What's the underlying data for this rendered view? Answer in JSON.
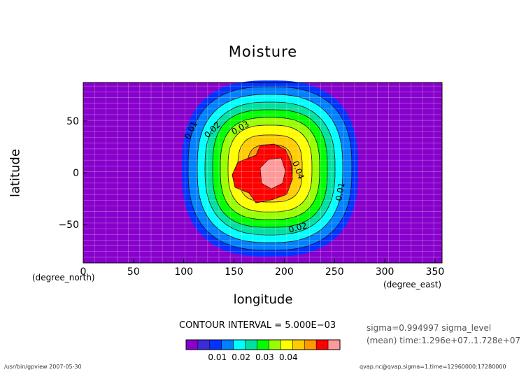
{
  "chart_data": {
    "type": "contour",
    "title": "Moisture",
    "xlabel": "longitude",
    "ylabel": "latitude",
    "x_unit": "(degree_east)",
    "y_unit": "(degree_north)",
    "xlim": [
      0,
      357
    ],
    "ylim": [
      -87,
      87
    ],
    "xticks": [
      "0",
      "50",
      "100",
      "150",
      "200",
      "250",
      "300",
      "350"
    ],
    "yticks": [
      "50",
      "0",
      "−50"
    ],
    "contour_interval_text": "CONTOUR INTERVAL = 5.000E−03",
    "contour_levels": [
      0.005,
      0.01,
      0.015,
      0.02,
      0.025,
      0.03,
      0.035,
      0.04,
      0.045
    ],
    "line_labels": [
      "0.01",
      "0.02",
      "0.03",
      "0.04",
      "0.01",
      "0.02"
    ],
    "colorbar_colors": [
      "#8800cc",
      "#3a2cd8",
      "#0033ff",
      "#007fff",
      "#00ffff",
      "#00e0a0",
      "#00ff00",
      "#99ff00",
      "#ffff00",
      "#ffcc00",
      "#ff9900",
      "#ff0000",
      "#ff9a9a"
    ],
    "colorbar_ticks": [
      "0.01",
      "0.02",
      "0.03",
      "0.04"
    ],
    "field": {
      "center_lon": 190,
      "center_lat": 0,
      "peak": 0.048
    }
  },
  "info": {
    "sigma": "sigma=0.994997 sigma_level",
    "time": "(mean) time:1.296e+07..1.728e+07"
  },
  "footer": {
    "left": "/usr/bin/gpview  2007-05-30",
    "right": "qvap.nc@qvap,sigma=1,time=12960000:17280000"
  }
}
